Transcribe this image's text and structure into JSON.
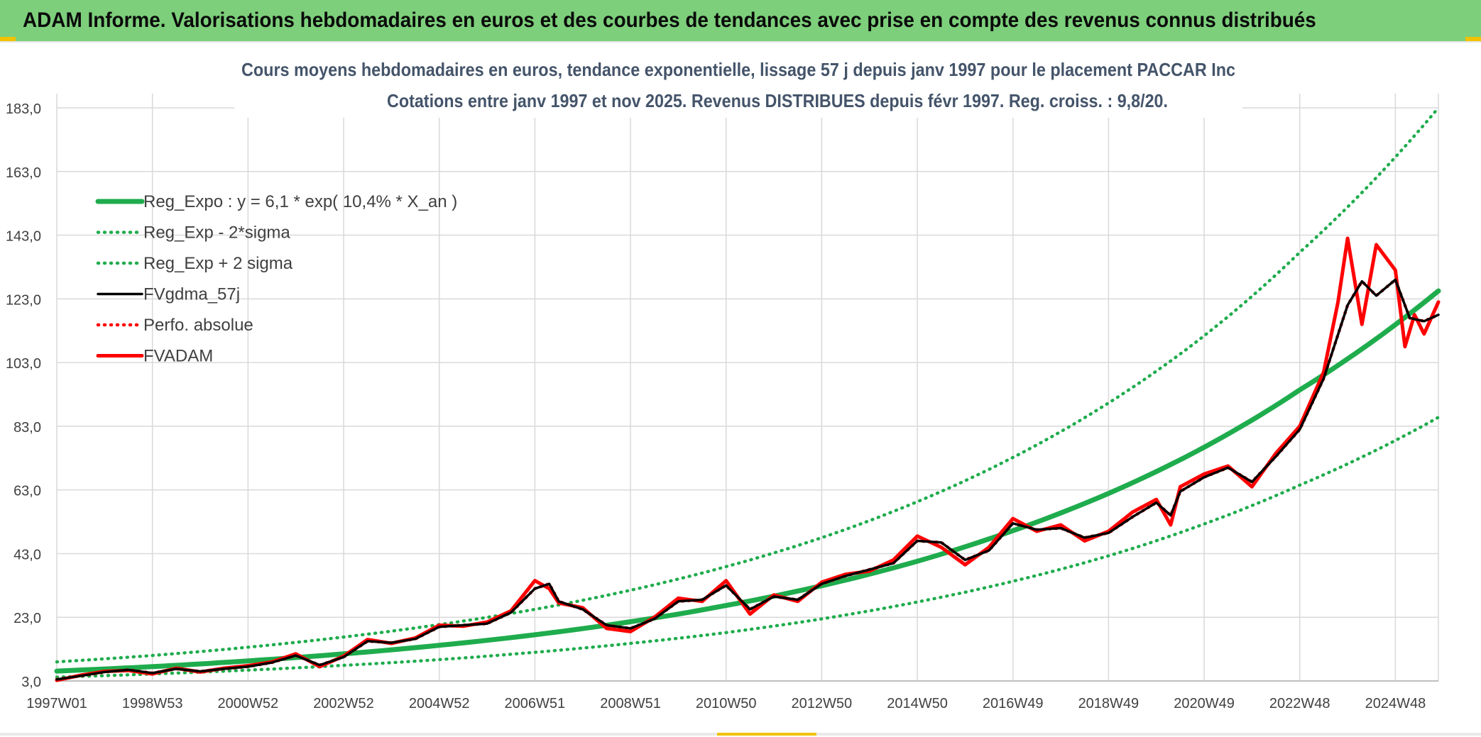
{
  "banner": {
    "title": "ADAM Informe. Valorisations hebdomadaires en euros et des courbes de tendances avec prise en compte des revenus connus distribués"
  },
  "chart_data": {
    "type": "line",
    "title": "Cours moyens hebdomadaires en euros, tendance exponentielle, lissage 57 j depuis janv 1997 pour le placement PACCAR Inc",
    "subtitle": "Cotations entre janv 1997 et nov 2025. Revenus DISTRIBUES depuis févr 1997. Reg. croiss. : 9,8/20.",
    "xlabel": "",
    "ylabel": "",
    "ylim": [
      3.0,
      183.0
    ],
    "yticks": [
      "3,0",
      "23,0",
      "43,0",
      "63,0",
      "83,0",
      "103,0",
      "123,0",
      "143,0",
      "163,0",
      "183,0"
    ],
    "ytick_values": [
      3,
      23,
      43,
      63,
      83,
      103,
      123,
      143,
      163,
      183
    ],
    "xlim": [
      1997.0,
      2025.9
    ],
    "xticks": [
      "1997W01",
      "1998W53",
      "2000W52",
      "2002W52",
      "2004W52",
      "2006W51",
      "2008W51",
      "2010W50",
      "2012W50",
      "2014W50",
      "2016W49",
      "2018W49",
      "2020W49",
      "2022W48",
      "2024W48"
    ],
    "xtick_values": [
      1997.0,
      1999.0,
      2001.0,
      2003.0,
      2005.0,
      2007.0,
      2009.0,
      2011.0,
      2013.0,
      2015.0,
      2017.0,
      2019.0,
      2021.0,
      2023.0,
      2025.0
    ],
    "grid": true,
    "legend_position": "top-left",
    "colors": {
      "green": "#1fac4d",
      "black": "#000000",
      "red": "#ff0000"
    },
    "series": [
      {
        "name": "Reg_Expo : y = 6,1 * exp( 10,4% *  X_an )",
        "style": "solid-thick",
        "color": "#1fac4d",
        "x": [
          1997,
          1999,
          2001,
          2003,
          2005,
          2007,
          2009,
          2011,
          2013,
          2015,
          2017,
          2019,
          2021,
          2023,
          2025.9
        ],
        "y": [
          6.1,
          7.5,
          9.3,
          11.5,
          14.2,
          17.5,
          21.6,
          26.7,
          32.9,
          40.6,
          50.2,
          61.9,
          76.4,
          94.4,
          125.5
        ]
      },
      {
        "name": "Reg_Exp - 2*sigma",
        "style": "dotted",
        "color": "#1fac4d",
        "x": [
          1997,
          1999,
          2001,
          2003,
          2005,
          2007,
          2009,
          2011,
          2013,
          2015,
          2017,
          2019,
          2021,
          2023,
          2025.9
        ],
        "y": [
          4.2,
          5.2,
          6.4,
          7.9,
          9.7,
          12.0,
          14.8,
          18.2,
          22.5,
          27.8,
          34.3,
          42.3,
          52.3,
          64.5,
          85.8
        ]
      },
      {
        "name": "Reg_Exp + 2 sigma",
        "style": "dotted",
        "color": "#1fac4d",
        "x": [
          1997,
          1999,
          2001,
          2003,
          2005,
          2007,
          2009,
          2011,
          2013,
          2015,
          2017,
          2019,
          2021,
          2023,
          2025.9
        ],
        "y": [
          9.0,
          11.0,
          13.6,
          16.8,
          20.7,
          25.5,
          31.5,
          38.9,
          48.0,
          59.3,
          73.2,
          90.3,
          111.4,
          137.6,
          183.0
        ]
      },
      {
        "name": "FVgdma_57j",
        "style": "solid",
        "color": "#000000",
        "x": [
          1997.0,
          1997.5,
          1998.0,
          1998.5,
          1999.0,
          1999.5,
          2000.0,
          2000.5,
          2001.0,
          2001.5,
          2002.0,
          2002.5,
          2003.0,
          2003.5,
          2004.0,
          2004.5,
          2005.0,
          2005.5,
          2006.0,
          2006.5,
          2007.0,
          2007.3,
          2007.5,
          2008.0,
          2008.5,
          2009.0,
          2009.5,
          2010.0,
          2010.5,
          2011.0,
          2011.5,
          2012.0,
          2012.5,
          2013.0,
          2013.5,
          2014.0,
          2014.5,
          2015.0,
          2015.5,
          2016.0,
          2016.5,
          2017.0,
          2017.5,
          2018.0,
          2018.5,
          2019.0,
          2019.5,
          2020.0,
          2020.3,
          2020.5,
          2021.0,
          2021.5,
          2022.0,
          2022.5,
          2023.0,
          2023.5,
          2024.0,
          2024.3,
          2024.6,
          2025.0,
          2025.3,
          2025.6,
          2025.9
        ],
        "y": [
          3.5,
          4.6,
          5.8,
          6.5,
          5.5,
          6.8,
          6.0,
          6.8,
          7.5,
          8.8,
          11.0,
          8.0,
          10.5,
          15.5,
          15.0,
          16.2,
          20.0,
          20.5,
          21.0,
          24.5,
          32.0,
          33.5,
          28.0,
          25.5,
          20.5,
          19.5,
          22.5,
          28.0,
          28.5,
          33.0,
          25.5,
          29.5,
          28.5,
          33.5,
          36.0,
          38.0,
          40.0,
          47.0,
          46.5,
          41.0,
          44.0,
          52.5,
          50.5,
          51.0,
          48.0,
          49.5,
          54.5,
          59.0,
          55.0,
          62.5,
          67.0,
          70.0,
          65.5,
          73.5,
          82.0,
          98.0,
          121.0,
          128.5,
          124.0,
          129.0,
          117.0,
          116.0,
          118.0
        ]
      },
      {
        "name": "Perfo. absolue",
        "style": "dotted",
        "color": "#ff0000",
        "x": [
          1997.0,
          1997.5,
          1998.0,
          1998.5,
          1999.0,
          1999.5,
          2000.0,
          2000.5,
          2001.0,
          2001.5,
          2002.0,
          2002.5,
          2003.0,
          2003.5,
          2004.0,
          2004.5,
          2005.0,
          2005.5,
          2006.0,
          2006.5,
          2007.0,
          2007.3,
          2007.5,
          2008.0,
          2008.5,
          2009.0,
          2009.5,
          2010.0,
          2010.5,
          2011.0,
          2011.5,
          2012.0,
          2012.5,
          2013.0,
          2013.5,
          2014.0,
          2014.5,
          2015.0,
          2015.5,
          2016.0,
          2016.5,
          2017.0,
          2017.5,
          2018.0,
          2018.5,
          2019.0,
          2019.5,
          2020.0,
          2020.3,
          2020.5,
          2021.0,
          2021.5,
          2022.0,
          2022.5,
          2023.0,
          2023.5,
          2024.0,
          2024.3,
          2024.6,
          2025.0,
          2025.3,
          2025.6,
          2025.9
        ],
        "y": [
          3.5,
          4.6,
          5.8,
          6.5,
          5.5,
          6.8,
          6.0,
          6.8,
          7.5,
          8.8,
          11.0,
          8.0,
          10.5,
          15.5,
          15.0,
          16.2,
          20.0,
          20.5,
          21.0,
          24.5,
          32.0,
          33.5,
          28.0,
          25.5,
          20.5,
          19.5,
          22.5,
          28.0,
          28.5,
          33.0,
          25.5,
          29.5,
          28.5,
          33.5,
          36.0,
          38.0,
          40.0,
          47.0,
          46.5,
          41.0,
          44.0,
          52.5,
          50.5,
          51.0,
          48.0,
          49.5,
          54.5,
          59.0,
          55.0,
          62.5,
          67.0,
          70.0,
          65.5,
          73.5,
          82.0,
          98.0,
          121.0,
          128.5,
          124.0,
          129.0,
          117.0,
          116.0,
          118.0
        ]
      },
      {
        "name": "FVADAM",
        "style": "solid-thick",
        "color": "#ff0000",
        "x": [
          1997.0,
          1997.5,
          1998.0,
          1998.5,
          1999.0,
          1999.5,
          2000.0,
          2000.5,
          2001.0,
          2001.5,
          2002.0,
          2002.5,
          2003.0,
          2003.5,
          2004.0,
          2004.5,
          2005.0,
          2005.5,
          2006.0,
          2006.5,
          2007.0,
          2007.3,
          2007.5,
          2008.0,
          2008.5,
          2009.0,
          2009.5,
          2010.0,
          2010.5,
          2011.0,
          2011.5,
          2012.0,
          2012.5,
          2013.0,
          2013.5,
          2014.0,
          2014.5,
          2015.0,
          2015.5,
          2016.0,
          2016.5,
          2017.0,
          2017.5,
          2018.0,
          2018.5,
          2019.0,
          2019.5,
          2020.0,
          2020.3,
          2020.5,
          2021.0,
          2021.5,
          2022.0,
          2022.5,
          2023.0,
          2023.5,
          2023.8,
          2024.0,
          2024.3,
          2024.6,
          2025.0,
          2025.2,
          2025.4,
          2025.6,
          2025.9
        ],
        "y": [
          3.2,
          4.8,
          6.0,
          6.3,
          5.2,
          7.0,
          5.8,
          7.0,
          7.8,
          9.0,
          11.5,
          7.5,
          10.8,
          16.0,
          14.8,
          16.5,
          20.5,
          20.2,
          21.5,
          25.0,
          34.5,
          32.0,
          27.5,
          26.0,
          19.5,
          18.5,
          23.0,
          29.0,
          28.0,
          34.5,
          24.0,
          30.0,
          28.0,
          34.0,
          36.5,
          37.5,
          41.0,
          48.5,
          45.0,
          39.5,
          45.0,
          54.0,
          50.0,
          52.0,
          47.0,
          50.0,
          56.0,
          60.0,
          52.0,
          64.0,
          68.0,
          70.5,
          64.0,
          74.5,
          83.0,
          100.0,
          122.0,
          142.0,
          115.0,
          140.0,
          132.0,
          108.0,
          118.0,
          112.0,
          122.0
        ]
      }
    ]
  }
}
